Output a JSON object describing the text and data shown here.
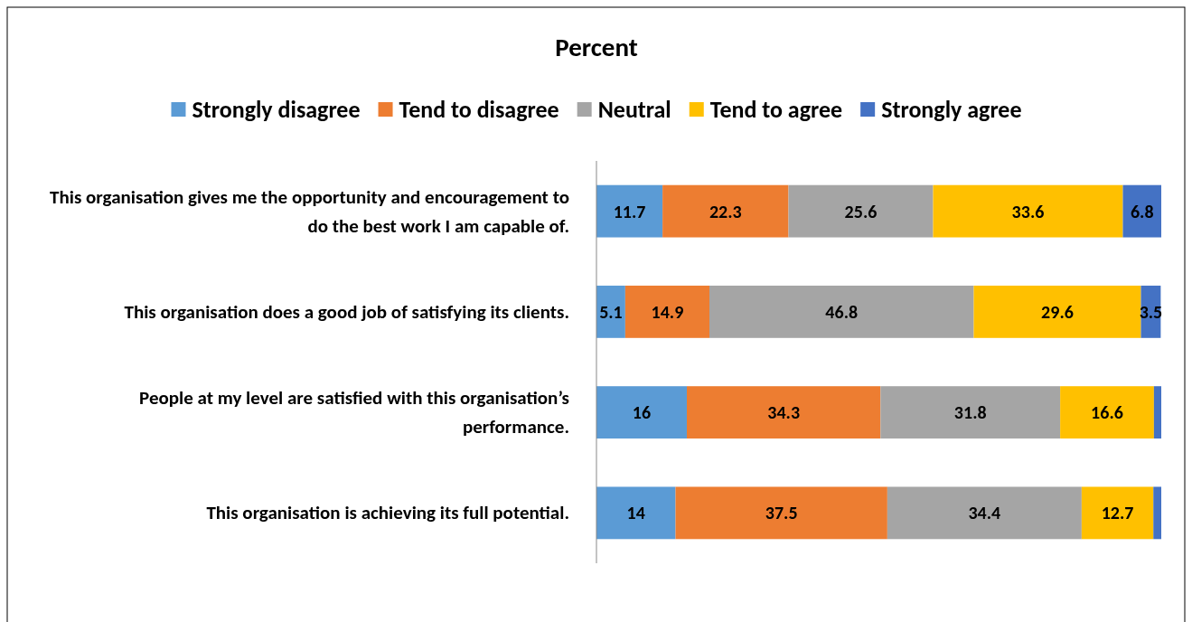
{
  "chart_data": {
    "type": "bar",
    "orientation": "horizontal",
    "stacked": true,
    "title": "Percent",
    "legend": "top",
    "xlim": [
      0,
      100
    ],
    "categories": [
      "This organisation gives me the opportunity and encouragement to do the best work I am capable of.",
      "This organisation does a good job of satisfying its clients.",
      "People at my level are satisfied with this organisation’s performance.",
      "This organisation is achieving its full potential."
    ],
    "series": [
      {
        "name": "Strongly disagree",
        "color": "#5b9bd5",
        "values": [
          11.7,
          5.1,
          16,
          14
        ],
        "value_labels": [
          "11.7",
          "5.1",
          "16",
          "14"
        ]
      },
      {
        "name": "Tend to disagree",
        "color": "#ed7d31",
        "values": [
          22.3,
          14.9,
          34.3,
          37.5
        ],
        "value_labels": [
          "22.3",
          "14.9",
          "34.3",
          "37.5"
        ]
      },
      {
        "name": "Neutral",
        "color": "#a5a5a5",
        "values": [
          25.6,
          46.8,
          31.8,
          34.4
        ],
        "value_labels": [
          "25.6",
          "46.8",
          "31.8",
          "34.4"
        ]
      },
      {
        "name": "Tend to agree",
        "color": "#ffc000",
        "values": [
          33.6,
          29.6,
          16.6,
          12.7
        ],
        "value_labels": [
          "33.6",
          "29.6",
          "16.6",
          "12.7"
        ]
      },
      {
        "name": "Strongly agree",
        "color": "#4472c4",
        "values": [
          6.8,
          3.5,
          1.3,
          1.4
        ],
        "value_labels": [
          "6.8",
          "3.5",
          null,
          null
        ]
      }
    ]
  }
}
